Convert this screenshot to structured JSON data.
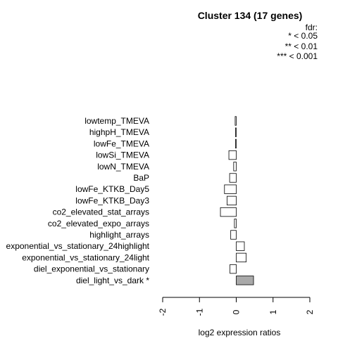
{
  "chart_data": {
    "type": "bar",
    "orientation": "horizontal",
    "title": "Cluster 134 (17 genes)",
    "xlabel": "log2 expression ratios",
    "ylabel": "",
    "xlim": [
      -2,
      2
    ],
    "xticks": [
      "-2",
      "-1",
      "0",
      "1",
      "2"
    ],
    "legend": {
      "title": "fdr:",
      "entries": [
        "* < 0.05",
        "** < 0.01",
        "*** < 0.001"
      ],
      "placement": "top-right"
    },
    "categories": [
      "lowtemp_TMEVA",
      "highpH_TMEVA",
      "lowFe_TMEVA",
      "lowSi_TMEVA",
      "lowN_TMEVA",
      "BaP",
      "lowFe_KTKB_Day5",
      "lowFe_KTKB_Day3",
      "co2_elevated_stat_arrays",
      "co2_elevated_expo_arrays",
      "highlight_arrays",
      "exponential_vs_stationary_24highlight",
      "exponential_vs_stationary_24light",
      "diel_exponential_vs_stationary",
      "diel_light_vs_dark *"
    ],
    "values": [
      -0.03,
      -0.02,
      -0.02,
      -0.2,
      -0.07,
      -0.18,
      -0.32,
      -0.25,
      -0.43,
      -0.05,
      -0.15,
      0.22,
      0.27,
      -0.17,
      0.47
    ],
    "significant": [
      false,
      false,
      false,
      false,
      false,
      false,
      false,
      false,
      false,
      false,
      false,
      false,
      false,
      false,
      true
    ],
    "colors": {
      "significant": "#a9a9a9",
      "normal": "#ffffff",
      "stroke": "#000000"
    }
  }
}
